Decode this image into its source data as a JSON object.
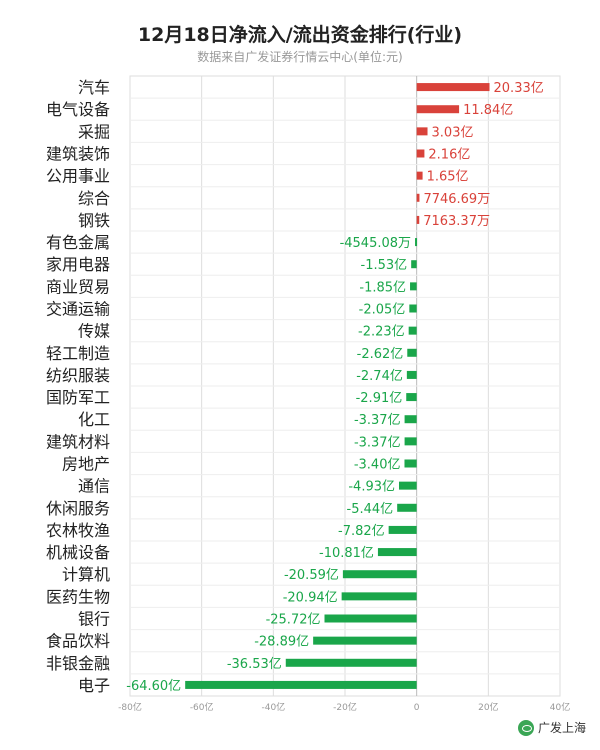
{
  "title": "12月18日净流入/流出资金排行(行业)",
  "subtitle": "数据来自广发证券行情云中心(单位:元)",
  "watermark": "广发上海",
  "colors": {
    "positive": "#d9423a",
    "negative": "#1aa64a",
    "grid": "#dddddd",
    "axis": "#999999"
  },
  "chart_data": {
    "type": "bar",
    "orientation": "horizontal",
    "title": "12月18日净流入/流出资金排行(行业)",
    "subtitle": "数据来自广发证券行情云中心(单位:元)",
    "xlim": [
      -80,
      40
    ],
    "xticks": [
      -80,
      -60,
      -40,
      -20,
      0,
      20,
      40
    ],
    "xtick_labels": [
      "-80亿",
      "-60亿",
      "-40亿",
      "-20亿",
      "0",
      "20亿",
      "40亿"
    ],
    "grid": true,
    "categories": [
      "汽车",
      "电气设备",
      "采掘",
      "建筑装饰",
      "公用事业",
      "综合",
      "钢铁",
      "有色金属",
      "家用电器",
      "商业贸易",
      "交通运输",
      "传媒",
      "轻工制造",
      "纺织服装",
      "国防军工",
      "化工",
      "建筑材料",
      "房地产",
      "通信",
      "休闲服务",
      "农林牧渔",
      "机械设备",
      "计算机",
      "医药生物",
      "银行",
      "食品饮料",
      "非银金融",
      "电子"
    ],
    "values": [
      20.33,
      11.84,
      3.03,
      2.16,
      1.65,
      0.774669,
      0.716337,
      -0.454508,
      -1.53,
      -1.85,
      -2.05,
      -2.23,
      -2.62,
      -2.74,
      -2.91,
      -3.37,
      -3.37,
      -3.4,
      -4.93,
      -5.44,
      -7.82,
      -10.81,
      -20.59,
      -20.94,
      -25.72,
      -28.89,
      -36.53,
      -64.6
    ],
    "labels": [
      "20.33亿",
      "11.84亿",
      "3.03亿",
      "2.16亿",
      "1.65亿",
      "7746.69万",
      "7163.37万",
      "-4545.08万",
      "-1.53亿",
      "-1.85亿",
      "-2.05亿",
      "-2.23亿",
      "-2.62亿",
      "-2.74亿",
      "-2.91亿",
      "-3.37亿",
      "-3.37亿",
      "-3.40亿",
      "-4.93亿",
      "-5.44亿",
      "-7.82亿",
      "-10.81亿",
      "-20.59亿",
      "-20.94亿",
      "-25.72亿",
      "-28.89亿",
      "-36.53亿",
      "-64.60亿"
    ]
  }
}
